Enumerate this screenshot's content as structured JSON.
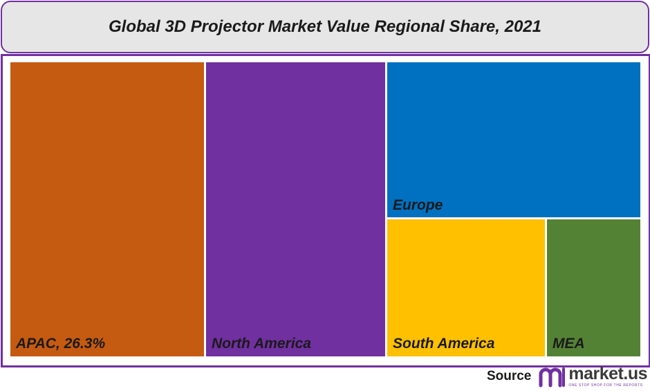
{
  "chart_data": {
    "type": "treemap",
    "title": "Global 3D Projector Market Value Regional Share, 2021",
    "tiles": [
      {
        "label": "APAC, 26.3%",
        "color": "#c55a11"
      },
      {
        "label": "North America",
        "color": "#7030a0"
      },
      {
        "label": "Europe",
        "color": "#0070c0"
      },
      {
        "label": "South America",
        "color": "#ffc000"
      },
      {
        "label": "MEA",
        "color": "#548235"
      }
    ]
  },
  "source": {
    "label": "Source",
    "brand": "market.us",
    "tagline": "ONE STOP SHOP FOR THE REPORTS",
    "logo_icon": "market-us-logo-icon"
  }
}
